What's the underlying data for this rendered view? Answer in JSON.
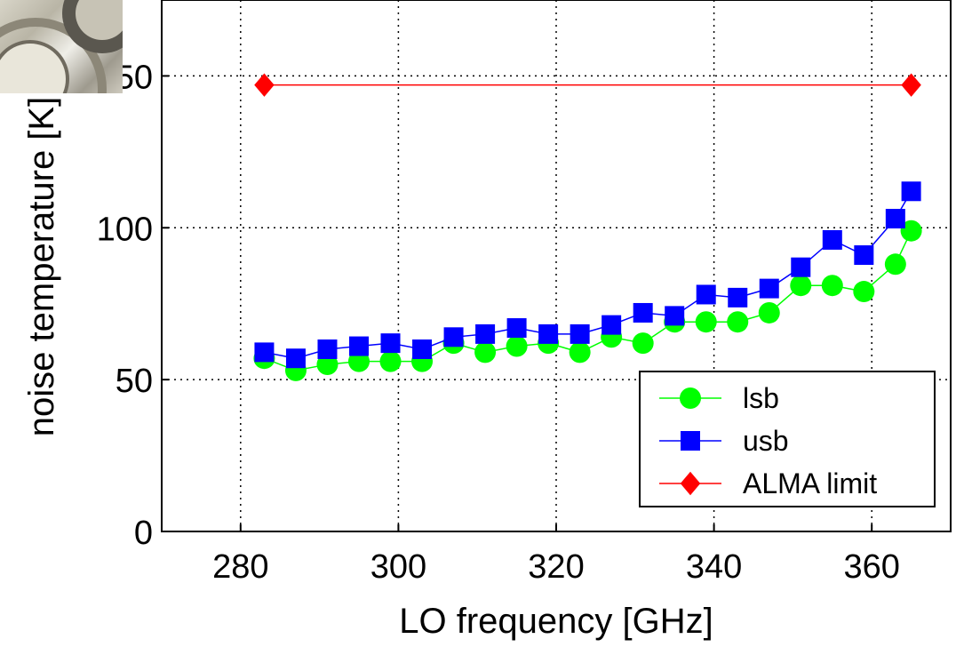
{
  "chart_data": {
    "type": "line",
    "xlabel": "LO frequency [GHz]",
    "ylabel": "noise temperature [K]",
    "xlim": [
      270,
      370
    ],
    "ylim": [
      0,
      175
    ],
    "x_ticks": [
      280,
      300,
      320,
      340,
      360
    ],
    "y_ticks": [
      0,
      50,
      100,
      150
    ],
    "grid": true,
    "grid_style": "dotted",
    "legend_position": "bottom-right",
    "series": [
      {
        "name": "lsb",
        "color": "#00ff00",
        "marker": "circle",
        "x": [
          283,
          287,
          291,
          295,
          299,
          303,
          307,
          311,
          315,
          319,
          323,
          327,
          331,
          335,
          339,
          343,
          347,
          351,
          355,
          359,
          363,
          365
        ],
        "y": [
          57,
          53,
          55,
          56,
          56,
          56,
          62,
          59,
          61,
          62,
          59,
          64,
          62,
          69,
          69,
          69,
          72,
          81,
          81,
          79,
          88,
          99
        ]
      },
      {
        "name": "usb",
        "color": "#0000ff",
        "marker": "square",
        "x": [
          283,
          287,
          291,
          295,
          299,
          303,
          307,
          311,
          315,
          319,
          323,
          327,
          331,
          335,
          339,
          343,
          347,
          351,
          355,
          359,
          363,
          365
        ],
        "y": [
          59,
          57,
          60,
          61,
          62,
          60,
          64,
          65,
          67,
          65,
          65,
          68,
          72,
          71,
          78,
          77,
          80,
          87,
          96,
          91,
          103,
          112
        ]
      },
      {
        "name": "ALMA limit",
        "color": "#ff0000",
        "marker": "diamond",
        "x": [
          283,
          365
        ],
        "y": [
          147,
          147
        ]
      }
    ]
  },
  "photo": {
    "name": "mixer-photo"
  }
}
